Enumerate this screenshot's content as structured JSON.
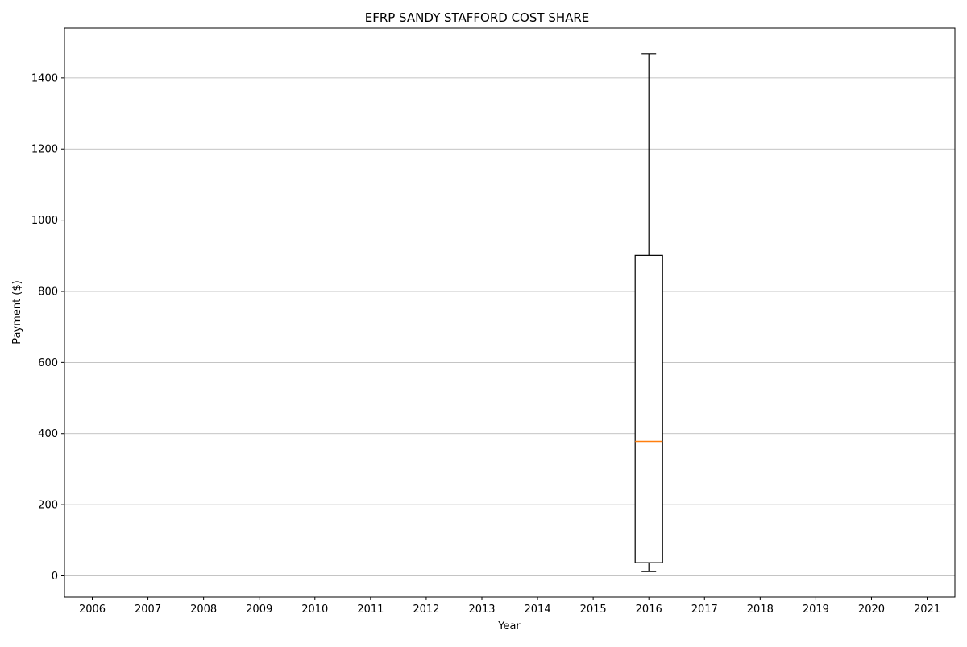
{
  "chart_data": {
    "type": "box",
    "title": "EFRP SANDY STAFFORD COST SHARE",
    "xlabel": "Year",
    "ylabel": "Payment ($)",
    "categories": [
      "2006",
      "2007",
      "2008",
      "2009",
      "2010",
      "2011",
      "2012",
      "2013",
      "2014",
      "2015",
      "2016",
      "2017",
      "2018",
      "2019",
      "2020",
      "2021"
    ],
    "ylim": [
      -60,
      1540
    ],
    "yticks": [
      0,
      200,
      400,
      600,
      800,
      1000,
      1200,
      1400
    ],
    "grid": "y",
    "boxes": [
      {
        "category": "2016",
        "whisker_low": 12,
        "q1": 37,
        "median": 378,
        "q3": 901,
        "whisker_high": 1468
      }
    ],
    "colors": {
      "box": "#000000",
      "median": "#ff7f0e",
      "grid": "#b0b0b0"
    }
  }
}
